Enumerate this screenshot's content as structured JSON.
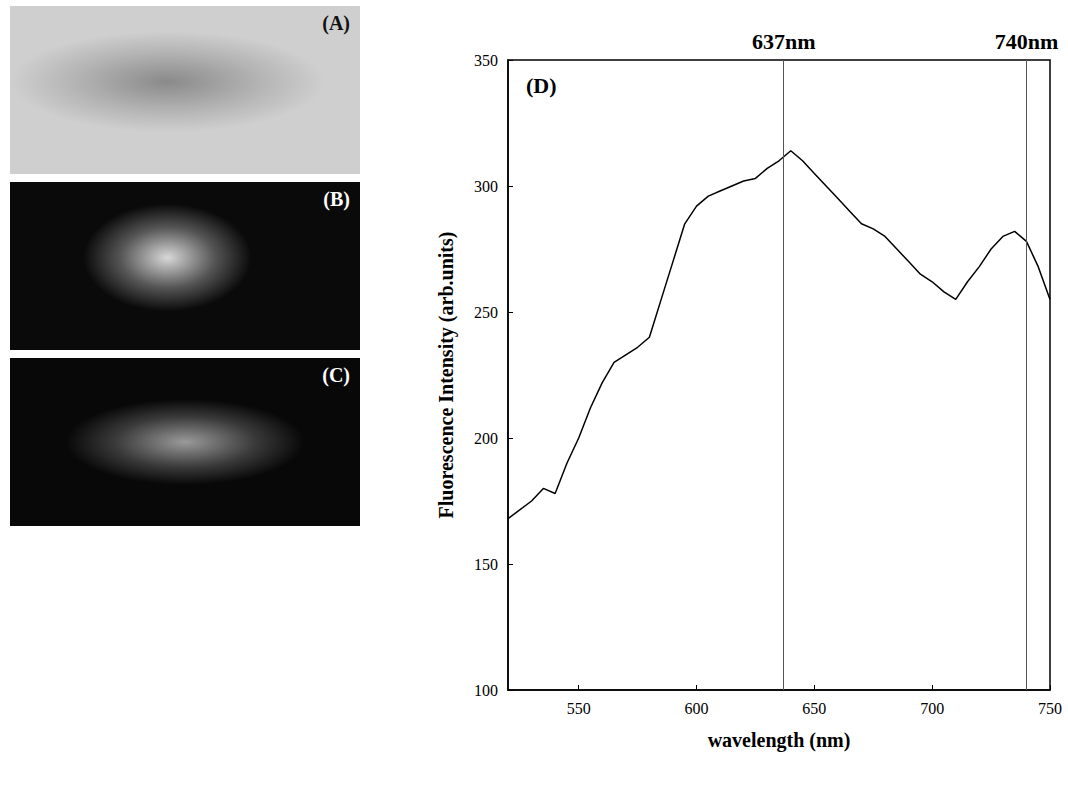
{
  "images": [
    {
      "label": "(A)"
    },
    {
      "label": "(B)"
    },
    {
      "label": "(C)"
    }
  ],
  "chart_data": {
    "type": "line",
    "label": "(D)",
    "x_label": "wavelength (nm)",
    "y_label": "Fluorescence Intensity (arb.units)",
    "x": [
      520,
      530,
      535,
      540,
      545,
      550,
      555,
      560,
      565,
      570,
      575,
      580,
      585,
      590,
      595,
      600,
      605,
      610,
      615,
      620,
      625,
      630,
      635,
      640,
      645,
      650,
      655,
      660,
      665,
      670,
      675,
      680,
      685,
      690,
      695,
      700,
      705,
      710,
      715,
      720,
      725,
      730,
      735,
      740,
      745,
      750
    ],
    "values": [
      168,
      175,
      180,
      178,
      190,
      200,
      212,
      222,
      230,
      233,
      236,
      240,
      255,
      270,
      285,
      292,
      296,
      298,
      300,
      302,
      303,
      307,
      310,
      314,
      310,
      305,
      300,
      295,
      290,
      285,
      283,
      280,
      275,
      270,
      265,
      262,
      258,
      255,
      262,
      268,
      275,
      280,
      282,
      278,
      268,
      255
    ],
    "color": "#000000",
    "xlim": [
      520,
      750
    ],
    "xticks": [
      550,
      600,
      650,
      700,
      750
    ],
    "ylim": [
      100,
      350
    ],
    "yticks": [
      100,
      150,
      200,
      250,
      300,
      350
    ],
    "grid": false,
    "annotations": [
      {
        "x": 637,
        "label": "637nm"
      },
      {
        "x": 740,
        "label": "740nm"
      }
    ]
  }
}
